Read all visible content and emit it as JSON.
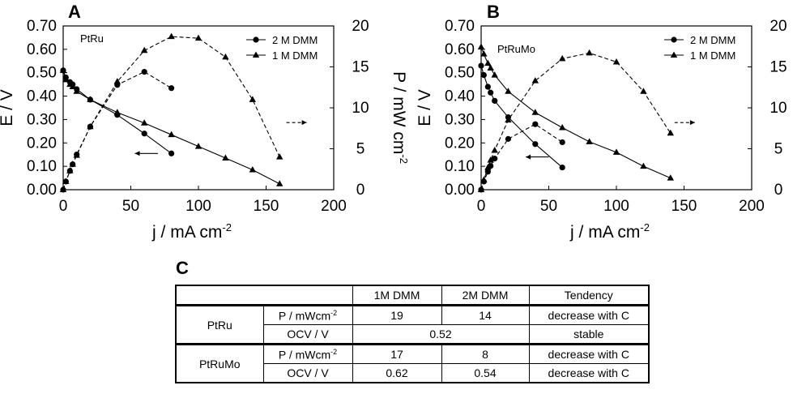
{
  "chart_data": [
    {
      "panel": "A",
      "type": "line",
      "annotation": "PtRu",
      "xlabel": "j / mA cm",
      "xlabel_sup": "-2",
      "ylabel": "E / V",
      "y2label": "P / mW cm",
      "y2label_sup": "-2",
      "xlim": [
        0,
        200
      ],
      "ylim": [
        0,
        0.7
      ],
      "y2lim": [
        0,
        20
      ],
      "x_ticks": [
        "0",
        "50",
        "100",
        "150",
        "200"
      ],
      "y_ticks": [
        "0.00",
        "0.10",
        "0.20",
        "0.30",
        "0.40",
        "0.50",
        "0.60",
        "0.70"
      ],
      "y2_ticks": [
        "0",
        "5",
        "10",
        "15",
        "20"
      ],
      "legend": [
        "2 M DMM",
        "1 M DMM"
      ],
      "series": [
        {
          "name": "2 M DMM",
          "marker": "circle",
          "axis": "left",
          "style": "solid",
          "x": [
            0,
            2,
            5,
            7,
            10,
            20,
            40,
            60,
            80
          ],
          "y": [
            0.51,
            0.48,
            0.46,
            0.45,
            0.43,
            0.385,
            0.32,
            0.24,
            0.155
          ]
        },
        {
          "name": "1 M DMM",
          "marker": "triangle",
          "axis": "left",
          "style": "solid",
          "x": [
            0,
            2,
            5,
            7,
            10,
            20,
            40,
            60,
            80,
            100,
            120,
            140,
            160
          ],
          "y": [
            0.51,
            0.47,
            0.45,
            0.44,
            0.42,
            0.385,
            0.33,
            0.285,
            0.235,
            0.185,
            0.135,
            0.085,
            0.025
          ]
        },
        {
          "name": "2 M DMM power",
          "marker": "circle",
          "axis": "right",
          "style": "dashed",
          "x": [
            0,
            2,
            5,
            7,
            10,
            20,
            40,
            60,
            80
          ],
          "y": [
            0,
            1.0,
            2.3,
            3.1,
            4.3,
            7.7,
            12.8,
            14.4,
            12.4
          ]
        },
        {
          "name": "1 M DMM power",
          "marker": "triangle",
          "axis": "right",
          "style": "dashed",
          "x": [
            0,
            2,
            5,
            7,
            10,
            20,
            40,
            60,
            80,
            100,
            120,
            140,
            160
          ],
          "y": [
            0,
            1.0,
            2.3,
            3.1,
            4.2,
            7.7,
            13.2,
            17.0,
            18.7,
            18.5,
            16.2,
            11.0,
            4.0
          ]
        }
      ],
      "arrows": [
        {
          "direction": "left",
          "x": [
            53,
            70
          ],
          "y_left": 0.155,
          "style": "solid",
          "points_to": "E axis"
        },
        {
          "direction": "right",
          "x": [
            165,
            180
          ],
          "y_right": 8.2,
          "style": "dashed",
          "points_to": "P axis"
        }
      ]
    },
    {
      "panel": "B",
      "type": "line",
      "annotation": "PtRuMo",
      "xlabel": "j / mA cm",
      "xlabel_sup": "-2",
      "ylabel": "E / V",
      "y2label": "P / mW cm",
      "y2label_sup": "-2",
      "xlim": [
        0,
        200
      ],
      "ylim": [
        0,
        0.7
      ],
      "y2lim": [
        0,
        20
      ],
      "x_ticks": [
        "0",
        "50",
        "100",
        "150",
        "200"
      ],
      "y_ticks": [
        "0.00",
        "0.10",
        "0.20",
        "0.30",
        "0.40",
        "0.50",
        "0.60",
        "0.70"
      ],
      "y2_ticks": [
        "0",
        "5",
        "10",
        "15",
        "20"
      ],
      "legend": [
        "2 M DMM",
        "1 M DMM"
      ],
      "series": [
        {
          "name": "2 M DMM",
          "marker": "circle",
          "axis": "left",
          "style": "solid",
          "x": [
            0,
            2,
            5,
            7,
            10,
            20,
            40,
            60
          ],
          "y": [
            0.53,
            0.49,
            0.44,
            0.415,
            0.38,
            0.31,
            0.195,
            0.095
          ]
        },
        {
          "name": "1 M DMM",
          "marker": "triangle",
          "axis": "left",
          "style": "solid",
          "x": [
            0,
            2,
            5,
            7,
            10,
            20,
            40,
            60,
            80,
            100,
            120,
            140
          ],
          "y": [
            0.61,
            0.58,
            0.54,
            0.52,
            0.49,
            0.42,
            0.33,
            0.265,
            0.205,
            0.16,
            0.1,
            0.05
          ]
        },
        {
          "name": "2 M DMM power",
          "marker": "circle",
          "axis": "right",
          "style": "dashed",
          "x": [
            0,
            2,
            5,
            7,
            10,
            20,
            40,
            60
          ],
          "y": [
            0,
            1.0,
            2.2,
            2.9,
            3.8,
            6.2,
            8.0,
            5.8
          ]
        },
        {
          "name": "1 M DMM power",
          "marker": "triangle",
          "axis": "right",
          "style": "dashed",
          "x": [
            0,
            2,
            5,
            7,
            10,
            20,
            40,
            60,
            80,
            100,
            120,
            140
          ],
          "y": [
            0,
            1.2,
            2.7,
            3.6,
            4.8,
            8.5,
            13.3,
            16.0,
            16.7,
            15.6,
            12.0,
            6.9
          ]
        }
      ],
      "arrows": [
        {
          "direction": "left",
          "x": [
            33,
            50
          ],
          "y_left": 0.14,
          "style": "solid",
          "points_to": "E axis"
        },
        {
          "direction": "right",
          "x": [
            143,
            158
          ],
          "y_right": 8.2,
          "style": "dashed",
          "points_to": "P axis"
        }
      ]
    },
    {
      "panel": "C",
      "type": "table",
      "columns": [
        "",
        "",
        "1M DMM",
        "2M DMM",
        "Tendency"
      ],
      "rows": [
        {
          "catalyst": "PtRu",
          "metric": "P / mWcm",
          "metric_sup": "-2",
          "values": [
            "19",
            "14"
          ],
          "tendency": "decrease with C"
        },
        {
          "catalyst": "PtRu",
          "metric": "OCV / V",
          "merged_value": "0.52",
          "tendency": "stable"
        },
        {
          "catalyst": "PtRuMo",
          "metric": "P / mWcm",
          "metric_sup": "-2",
          "values": [
            "17",
            "8"
          ],
          "tendency": "decrease with C"
        },
        {
          "catalyst": "PtRuMo",
          "metric": "OCV / V",
          "values": [
            "0.62",
            "0.54"
          ],
          "tendency": "decrease with C"
        }
      ]
    }
  ]
}
